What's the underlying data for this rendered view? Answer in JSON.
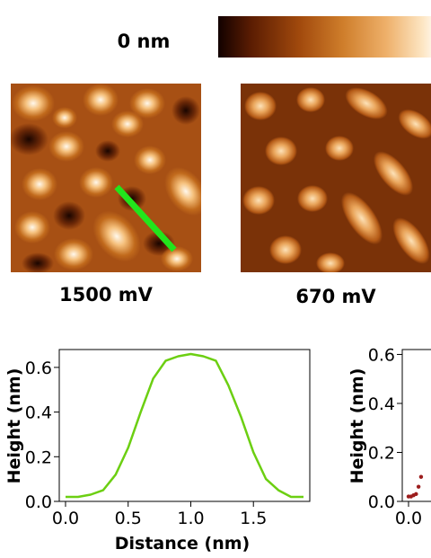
{
  "colorbar": {
    "min_label": "0 nm"
  },
  "images": [
    {
      "label": "1500 mV"
    },
    {
      "label": "670 mV"
    }
  ],
  "colors": {
    "line_cut": "#22e51c",
    "profile_line": "#6ccf12",
    "profile_points": "#9c1d1d"
  },
  "chart_data": [
    {
      "type": "line",
      "title": "",
      "xlabel": "Distance (nm)",
      "ylabel": "Height (nm)",
      "xlim": [
        -0.05,
        1.95
      ],
      "ylim": [
        0.0,
        0.68
      ],
      "xticks": [
        "0.0",
        "0.5",
        "1.0",
        "1.5"
      ],
      "yticks": [
        "0.0",
        "0.2",
        "0.4",
        "0.6"
      ],
      "series": [
        {
          "x": [
            0.0,
            0.1,
            0.2,
            0.3,
            0.4,
            0.5,
            0.6,
            0.7,
            0.8,
            0.9,
            1.0,
            1.1,
            1.2,
            1.3,
            1.4,
            1.5,
            1.6,
            1.7,
            1.8,
            1.9
          ],
          "values": [
            0.02,
            0.02,
            0.03,
            0.05,
            0.12,
            0.24,
            0.4,
            0.55,
            0.63,
            0.65,
            0.66,
            0.65,
            0.63,
            0.52,
            0.38,
            0.22,
            0.1,
            0.05,
            0.02,
            0.02
          ]
        }
      ]
    },
    {
      "type": "scatter",
      "title": "",
      "xlabel": "",
      "ylabel": "Height (nm)",
      "xlim": [
        -0.05,
        1.95
      ],
      "ylim": [
        0.0,
        0.62
      ],
      "xticks": [
        "0.0"
      ],
      "yticks": [
        "0.0",
        "0.2",
        "0.4",
        "0.6"
      ],
      "series": [
        {
          "x": [
            0.0,
            0.02,
            0.04,
            0.06,
            0.08,
            0.1
          ],
          "values": [
            0.02,
            0.02,
            0.025,
            0.03,
            0.06,
            0.1
          ]
        }
      ]
    }
  ]
}
